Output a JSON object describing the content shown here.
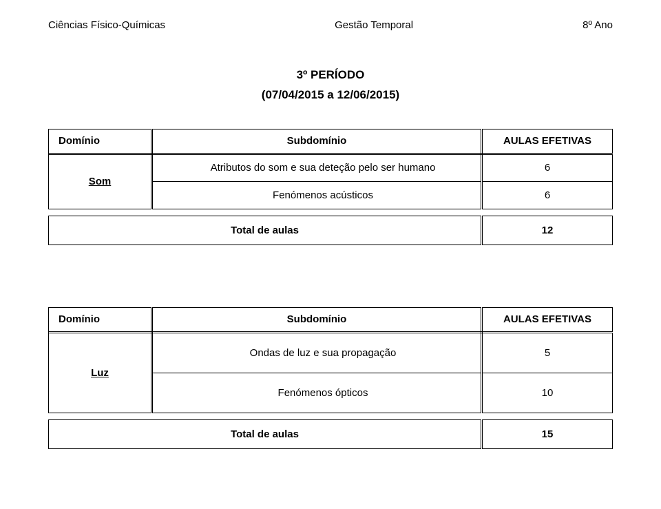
{
  "header": {
    "left": "Ciências Físico-Químicas",
    "center": "Gestão Temporal",
    "right": "8º Ano"
  },
  "title": {
    "period": "3º PERÍODO",
    "dates": "(07/04/2015 a 12/06/2015)"
  },
  "table1": {
    "col_dominio": "Domínio",
    "col_sub": "Subdomínio",
    "col_aulas": "AULAS EFETIVAS",
    "domain": "Som",
    "row1_label": "Atributos do som e sua deteção pelo ser humano",
    "row1_val": "6",
    "row2_label": "Fenómenos acústicos",
    "row2_val": "6",
    "total_label": "Total de aulas",
    "total_val": "12"
  },
  "table2": {
    "col_dominio": "Domínio",
    "col_sub": "Subdomínio",
    "col_aulas": "AULAS EFETIVAS",
    "domain": "Luz",
    "row1_label": "Ondas de luz e sua propagação",
    "row1_val": "5",
    "row2_label": "Fenómenos ópticos",
    "row2_val": "10",
    "total_label": "Total de aulas",
    "total_val": "15"
  }
}
